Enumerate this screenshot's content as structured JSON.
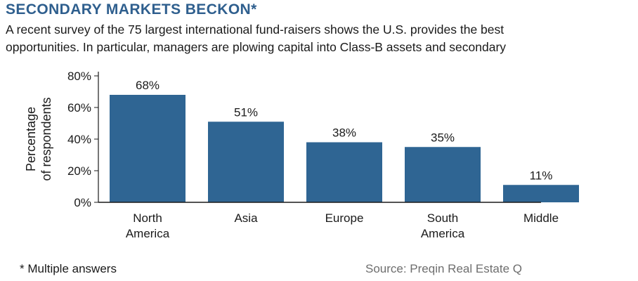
{
  "title": "SECONDARY MARKETS BECKON*",
  "subtitle_lines": [
    "A recent survey of the 75 largest international fund-raisers shows the U.S. provides the best",
    "opportunities. In particular, managers are plowing capital into Class-B assets and secondary"
  ],
  "footnote": "* Multiple answers",
  "source": "Source: Preqin Real Estate Q",
  "colors": {
    "bar": "#2f6593",
    "title": "#2f5f8e"
  },
  "chart_data": {
    "type": "bar",
    "categories": [
      [
        "North",
        "America"
      ],
      [
        "Asia"
      ],
      [
        "Europe"
      ],
      [
        "South",
        "America"
      ],
      [
        "Middle"
      ]
    ],
    "values": [
      68,
      51,
      38,
      35,
      11
    ],
    "value_labels": [
      "68%",
      "51%",
      "38%",
      "35%",
      "11%"
    ],
    "ylabel": [
      "Percentage",
      "of respondents"
    ],
    "ylim": [
      0,
      80
    ],
    "yticks": [
      "0%",
      "20%",
      "40%",
      "60%",
      "80%"
    ],
    "grid": false
  }
}
